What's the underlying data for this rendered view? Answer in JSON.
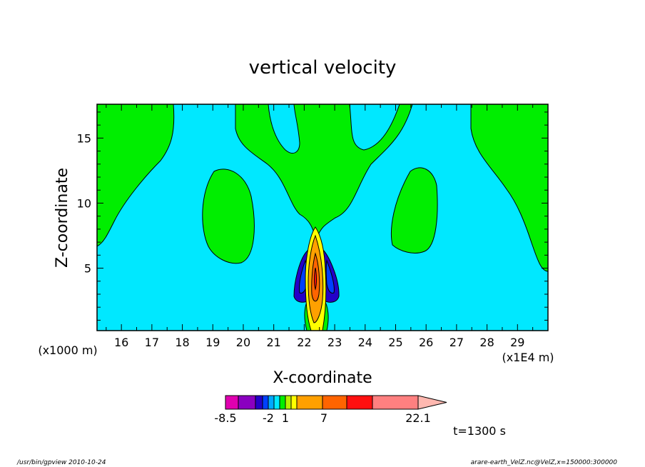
{
  "chart_data": {
    "type": "contour",
    "title": "vertical velocity",
    "xlabel": "X-coordinate",
    "ylabel": "Z-coordinate",
    "x_unit": "(x1E4 m)",
    "y_unit": "(x1000 m)",
    "xlim": [
      15.2,
      30.0
    ],
    "ylim": [
      0.2,
      17.6
    ],
    "x_ticks": [
      16,
      17,
      18,
      19,
      20,
      21,
      22,
      23,
      24,
      25,
      26,
      27,
      28,
      29
    ],
    "y_ticks": [
      5,
      10,
      15
    ],
    "colorbar": {
      "colors": [
        "#e000b0",
        "#8a00c0",
        "#2400c8",
        "#0040ff",
        "#00a8ff",
        "#00e8ff",
        "#00ee00",
        "#b8f000",
        "#ffff00",
        "#ffa000",
        "#ff6400",
        "#ff1010",
        "#ff8080",
        "#ffb8b0"
      ],
      "labels": [
        "-8.5",
        "-2",
        "1",
        "7",
        "22.1"
      ]
    },
    "background_color": "#00e8ff",
    "positive_region_color": "#00ee00",
    "time_label": "t=1300 s"
  },
  "footer": {
    "left": "/usr/bin/gpview   2010-10-24",
    "right": "arare-earth_VelZ.nc@VelZ,x=150000:300000"
  }
}
